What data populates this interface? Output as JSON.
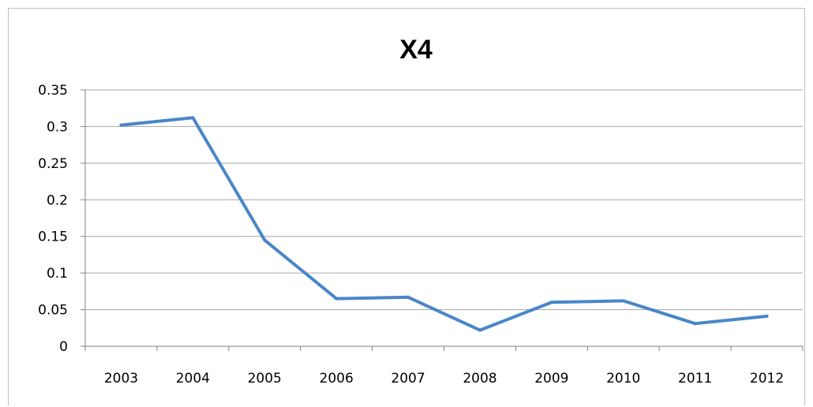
{
  "chart_data": {
    "type": "line",
    "title": "X4",
    "xlabel": "",
    "ylabel": "",
    "categories": [
      "2003",
      "2004",
      "2005",
      "2006",
      "2007",
      "2008",
      "2009",
      "2010",
      "2011",
      "2012"
    ],
    "series": [
      {
        "values": [
          0.302,
          0.312,
          0.145,
          0.065,
          0.067,
          0.022,
          0.06,
          0.062,
          0.031,
          0.041
        ],
        "color": "#4a86c8"
      }
    ],
    "ylim": [
      0,
      0.35
    ],
    "yticks": [
      "0",
      "0.05",
      "0.1",
      "0.15",
      "0.2",
      "0.25",
      "0.3",
      "0.35"
    ],
    "grid": true,
    "legend": "none"
  }
}
